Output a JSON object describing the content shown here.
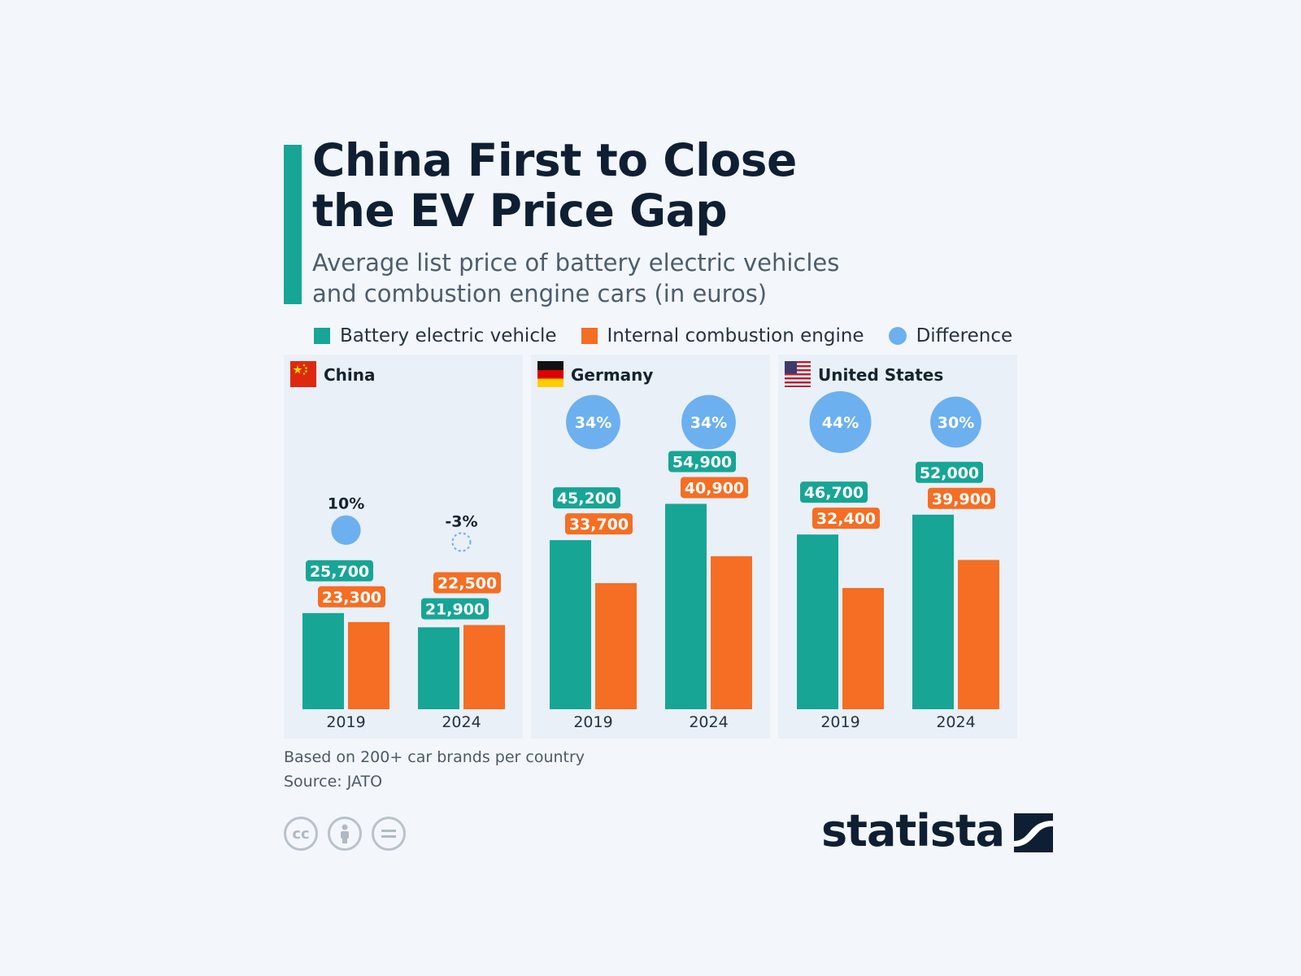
{
  "header": {
    "title_lines": [
      "China First to Close",
      "the EV Price Gap"
    ],
    "subtitle_lines": [
      "Average list price of battery electric vehicles",
      "and combustion engine cars (in euros)"
    ]
  },
  "legend": {
    "bev": "Battery electric vehicle",
    "ice": "Internal combustion engine",
    "diff": "Difference"
  },
  "colors": {
    "bev": "#17a596",
    "ice": "#f56e23",
    "diff": "#6cb0ef",
    "panel_bg": "#e9f0f8"
  },
  "panels": [
    {
      "country": "China",
      "flag": "china-flag-icon"
    },
    {
      "country": "Germany",
      "flag": "germany-flag-icon"
    },
    {
      "country": "United States",
      "flag": "us-flag-icon"
    }
  ],
  "chart_data": {
    "type": "bar",
    "groups": [
      {
        "country": "China",
        "categories": [
          "2019",
          "2024"
        ],
        "bev": [
          25700,
          21900
        ],
        "ice": [
          23300,
          22500
        ],
        "bev_labels": [
          "25,700",
          "21,900"
        ],
        "ice_labels": [
          "23,300",
          "22,500"
        ],
        "difference": [
          10,
          -3
        ],
        "difference_labels": [
          "10%",
          "-3%"
        ]
      },
      {
        "country": "Germany",
        "categories": [
          "2019",
          "2024"
        ],
        "bev": [
          45200,
          54900
        ],
        "ice": [
          33700,
          40900
        ],
        "bev_labels": [
          "45,200",
          "54,900"
        ],
        "ice_labels": [
          "33,700",
          "40,900"
        ],
        "difference": [
          34,
          34
        ],
        "difference_labels": [
          "34%",
          "34%"
        ]
      },
      {
        "country": "United States",
        "categories": [
          "2019",
          "2024"
        ],
        "bev": [
          46700,
          52000
        ],
        "ice": [
          32400,
          39900
        ],
        "bev_labels": [
          "46,700",
          "52,000"
        ],
        "ice_labels": [
          "32,400",
          "39,900"
        ],
        "difference": [
          44,
          30
        ],
        "difference_labels": [
          "44%",
          "30%"
        ]
      }
    ],
    "series": [
      {
        "name": "Battery electric vehicle"
      },
      {
        "name": "Internal combustion engine"
      },
      {
        "name": "Difference"
      }
    ],
    "ylim": [
      0,
      60000
    ],
    "grid": false,
    "legend": "top"
  },
  "footer": {
    "note": "Based on 200+ car brands per country",
    "source": "Source: JATO",
    "license_icons": [
      "cc-icon",
      "attribution-icon",
      "no-derivatives-icon"
    ],
    "logo": "statista"
  }
}
